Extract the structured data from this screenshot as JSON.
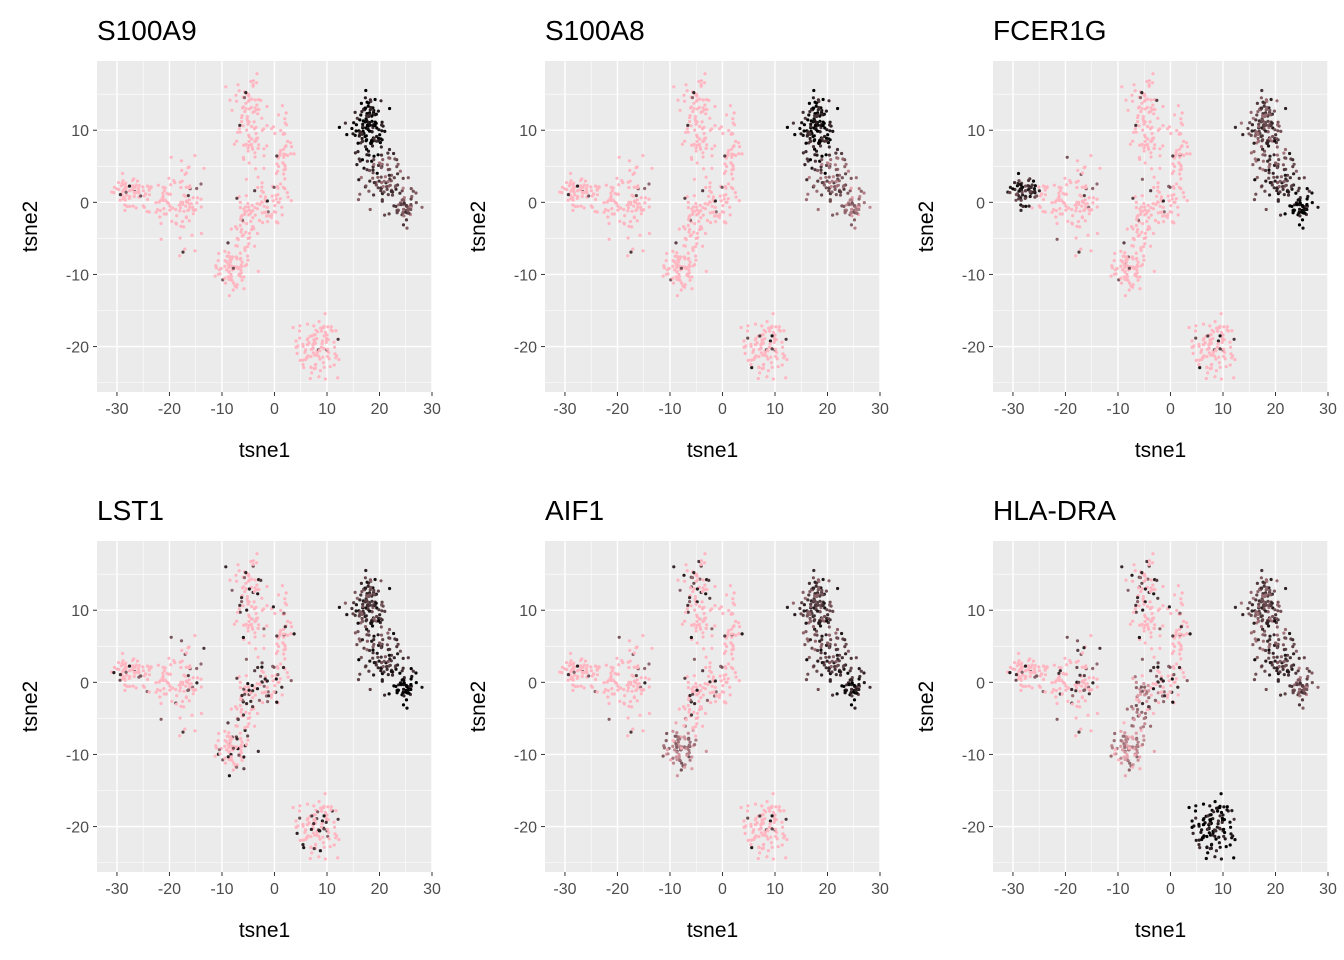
{
  "chart_data": [
    {
      "type": "scatter",
      "title": "S100A9",
      "xlabel": "tsne1",
      "ylabel": "tsne2"
    },
    {
      "type": "scatter",
      "title": "S100A8",
      "xlabel": "tsne1",
      "ylabel": "tsne2"
    },
    {
      "type": "scatter",
      "title": "FCER1G",
      "xlabel": "tsne1",
      "ylabel": "tsne2"
    },
    {
      "type": "scatter",
      "title": "LST1",
      "xlabel": "tsne1",
      "ylabel": "tsne2"
    },
    {
      "type": "scatter",
      "title": "AIF1",
      "xlabel": "tsne1",
      "ylabel": "tsne2"
    },
    {
      "type": "scatter",
      "title": "HLA-DRA",
      "xlabel": "tsne1",
      "ylabel": "tsne2"
    }
  ],
  "shared": {
    "xlim": [
      -33.8,
      30
    ],
    "ylim": [
      -26.3,
      19.6
    ],
    "xticks": [
      -30,
      -20,
      -10,
      0,
      10,
      20,
      30
    ],
    "yticks": [
      -20,
      -10,
      0,
      10
    ],
    "grid": true,
    "legend": "none",
    "colors": {
      "low": "#FFB6C1",
      "high": "#000000",
      "panel_bg": "#EBEBEB",
      "grid": "#FFFFFF"
    },
    "clusters": [
      {
        "center": [
          -28,
          1.5
        ],
        "sd": [
          1.5,
          1
        ],
        "n": 60
      },
      {
        "center": [
          -22,
          0.5
        ],
        "sd": [
          2,
          1.5
        ],
        "n": 50
      },
      {
        "center": [
          -16.5,
          -0.5
        ],
        "sd": [
          1.5,
          3
        ],
        "n": 70
      },
      {
        "center": [
          -8,
          -9
        ],
        "sd": [
          1.5,
          1.5
        ],
        "n": 80
      },
      {
        "center": [
          -6,
          -3
        ],
        "sd": [
          1.5,
          2
        ],
        "n": 50
      },
      {
        "center": [
          -5,
          14
        ],
        "sd": [
          1.5,
          2
        ],
        "n": 60
      },
      {
        "center": [
          -4.5,
          8
        ],
        "sd": [
          1.5,
          1.5
        ],
        "n": 40
      },
      {
        "center": [
          1.5,
          7
        ],
        "sd": [
          1.3,
          3
        ],
        "n": 50
      },
      {
        "center": [
          -1.5,
          0
        ],
        "sd": [
          2,
          2
        ],
        "n": 60
      },
      {
        "center": [
          8,
          -20
        ],
        "sd": [
          2,
          2
        ],
        "n": 110
      },
      {
        "center": [
          18,
          10
        ],
        "sd": [
          1.5,
          2.5
        ],
        "n": 140
      },
      {
        "center": [
          21,
          3
        ],
        "sd": [
          2,
          2
        ],
        "n": 80
      },
      {
        "center": [
          25,
          -1
        ],
        "sd": [
          1.2,
          1
        ],
        "n": 50
      }
    ],
    "expression": {
      "S100A9": [
        0.03,
        0.02,
        0.02,
        0.02,
        0.02,
        0.02,
        0.03,
        0.02,
        0.02,
        0.02,
        0.95,
        0.6,
        0.5
      ],
      "S100A8": [
        0.02,
        0.02,
        0.02,
        0.02,
        0.02,
        0.02,
        0.02,
        0.02,
        0.02,
        0.05,
        0.92,
        0.5,
        0.3
      ],
      "FCER1G": [
        0.8,
        0.02,
        0.05,
        0.03,
        0.03,
        0.03,
        0.03,
        0.05,
        0.03,
        0.05,
        0.6,
        0.7,
        0.92
      ],
      "LST1": [
        0.05,
        0.05,
        0.1,
        0.15,
        0.15,
        0.1,
        0.1,
        0.15,
        0.15,
        0.1,
        0.7,
        0.75,
        0.95
      ],
      "AIF1": [
        0.03,
        0.05,
        0.08,
        0.3,
        0.1,
        0.15,
        0.08,
        0.1,
        0.05,
        0.05,
        0.65,
        0.7,
        0.8
      ],
      "HLA-DRA": [
        0.05,
        0.1,
        0.15,
        0.2,
        0.3,
        0.15,
        0.1,
        0.15,
        0.15,
        0.95,
        0.6,
        0.7,
        0.5
      ]
    }
  }
}
